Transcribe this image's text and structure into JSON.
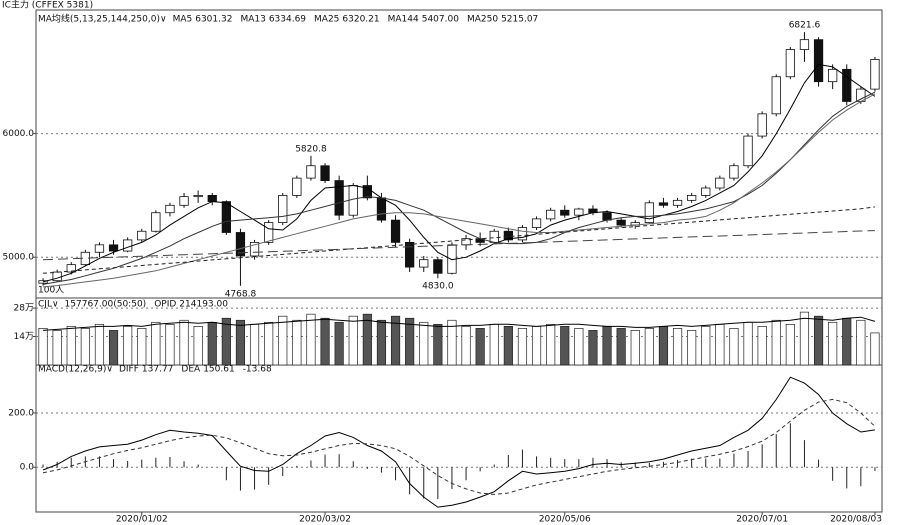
{
  "chart_data": [
    {
      "type": "candlestick",
      "title": "IC主力 (CFFEX 5381)",
      "legend_title": "MA均线(5,13,25,144,250,0)∨",
      "note": "100人",
      "ylim": [
        4670,
        7000
      ],
      "grid": true,
      "yticks": [
        {
          "value": 5000,
          "label": "5000.0"
        },
        {
          "value": 6000,
          "label": "6000.0"
        }
      ],
      "up_color": "#ffffff",
      "down_color": "#111111",
      "open": [
        4790,
        4810,
        4880,
        4940,
        5040,
        5100,
        5050,
        5140,
        5210,
        5360,
        5420,
        5490,
        5500,
        5450,
        5200,
        5010,
        5120,
        5280,
        5500,
        5640,
        5740,
        5620,
        5340,
        5580,
        5480,
        5300,
        5120,
        4920,
        4980,
        4870,
        5100,
        5150,
        5120,
        5210,
        5140,
        5240,
        5310,
        5380,
        5340,
        5390,
        5360,
        5300,
        5260,
        5280,
        5440,
        5420,
        5460,
        5500,
        5560,
        5640,
        5740,
        5980,
        6160,
        6460,
        6680,
        6760,
        6420,
        6520,
        6260,
        6360
      ],
      "high": [
        4830,
        4900,
        4960,
        5060,
        5120,
        5140,
        5160,
        5230,
        5380,
        5440,
        5520,
        5540,
        5520,
        5460,
        5230,
        5140,
        5300,
        5520,
        5660,
        5820.8,
        5760,
        5660,
        5600,
        5660,
        5520,
        5340,
        5150,
        5010,
        5000,
        5120,
        5180,
        5200,
        5230,
        5240,
        5260,
        5330,
        5400,
        5420,
        5400,
        5420,
        5380,
        5320,
        5300,
        5460,
        5480,
        5480,
        5520,
        5580,
        5660,
        5760,
        6000,
        6180,
        6480,
        6700,
        6821.6,
        6780,
        6560,
        6560,
        6380,
        6620
      ],
      "low": [
        4770,
        4800,
        4860,
        4930,
        5000,
        5020,
        5040,
        5120,
        5200,
        5330,
        5400,
        5440,
        5420,
        5180,
        4768.8,
        4980,
        5100,
        5260,
        5480,
        5620,
        5600,
        5300,
        5320,
        5460,
        5280,
        5080,
        4880,
        4880,
        4830,
        4860,
        5060,
        5090,
        5110,
        5120,
        5120,
        5220,
        5290,
        5320,
        5300,
        5340,
        5280,
        5240,
        5230,
        5270,
        5400,
        5400,
        5440,
        5480,
        5540,
        5620,
        5720,
        5960,
        6140,
        6440,
        6580,
        6380,
        6360,
        6230,
        6240,
        6340
      ],
      "close": [
        4810,
        4880,
        4940,
        5040,
        5100,
        5050,
        5140,
        5210,
        5360,
        5420,
        5490,
        5500,
        5450,
        5200,
        5010,
        5120,
        5280,
        5500,
        5640,
        5740,
        5620,
        5340,
        5580,
        5480,
        5300,
        5120,
        4920,
        4980,
        4870,
        5100,
        5150,
        5120,
        5210,
        5140,
        5240,
        5310,
        5380,
        5340,
        5390,
        5360,
        5300,
        5260,
        5280,
        5440,
        5420,
        5460,
        5500,
        5560,
        5640,
        5740,
        5980,
        6160,
        6460,
        6680,
        6760,
        6420,
        6520,
        6260,
        6360,
        6600
      ],
      "high_labels": [
        null,
        null,
        null,
        null,
        null,
        null,
        null,
        null,
        null,
        null,
        null,
        null,
        null,
        null,
        null,
        null,
        null,
        null,
        null,
        "5820.8",
        null,
        null,
        null,
        null,
        null,
        null,
        null,
        null,
        null,
        null,
        null,
        null,
        null,
        null,
        null,
        null,
        null,
        null,
        null,
        null,
        null,
        null,
        null,
        null,
        null,
        null,
        null,
        null,
        null,
        null,
        null,
        null,
        null,
        null,
        "6821.6",
        null,
        null,
        null,
        null,
        null
      ],
      "low_labels": [
        null,
        null,
        null,
        null,
        null,
        null,
        null,
        null,
        null,
        null,
        null,
        null,
        null,
        null,
        "4768.8",
        null,
        null,
        null,
        null,
        null,
        null,
        null,
        null,
        null,
        null,
        null,
        null,
        null,
        "4830.0",
        null,
        null,
        null,
        null,
        null,
        null,
        null,
        null,
        null,
        null,
        null,
        null,
        null,
        null,
        null,
        null,
        null,
        null,
        null,
        null,
        null,
        null,
        null,
        null,
        null,
        null,
        null,
        null,
        null,
        null,
        null
      ],
      "series": [
        {
          "name": "MA5",
          "legend_label": "6301.32",
          "color": "#000000",
          "style": "solid",
          "values": [
            4800,
            4830,
            4870,
            4930,
            4990,
            5040,
            5080,
            5120,
            5180,
            5260,
            5330,
            5400,
            5450,
            5440,
            5370,
            5300,
            5230,
            5220,
            5310,
            5460,
            5560,
            5570,
            5580,
            5560,
            5480,
            5420,
            5300,
            5160,
            5040,
            4980,
            5000,
            5050,
            5110,
            5150,
            5160,
            5190,
            5260,
            5300,
            5330,
            5360,
            5370,
            5350,
            5330,
            5310,
            5340,
            5370,
            5410,
            5460,
            5520,
            5580,
            5690,
            5820,
            6000,
            6200,
            6410,
            6560,
            6540,
            6460,
            6380,
            6301.32
          ]
        },
        {
          "name": "MA13",
          "legend_label": "6334.69",
          "color": "#333333",
          "style": "solid",
          "values": [
            4780,
            4800,
            4820,
            4850,
            4880,
            4910,
            4950,
            4990,
            5040,
            5090,
            5150,
            5200,
            5250,
            5290,
            5300,
            5310,
            5320,
            5330,
            5350,
            5380,
            5410,
            5440,
            5470,
            5490,
            5480,
            5460,
            5420,
            5380,
            5320,
            5260,
            5200,
            5150,
            5120,
            5110,
            5110,
            5120,
            5150,
            5200,
            5240,
            5270,
            5300,
            5320,
            5330,
            5330,
            5340,
            5350,
            5370,
            5390,
            5420,
            5450,
            5510,
            5580,
            5680,
            5790,
            5910,
            6030,
            6140,
            6220,
            6280,
            6334.69
          ]
        },
        {
          "name": "MA25",
          "legend_label": "6320.21",
          "color": "#666666",
          "style": "solid",
          "values": [
            4760,
            4770,
            4785,
            4800,
            4815,
            4830,
            4850,
            4870,
            4890,
            4920,
            4950,
            4980,
            5010,
            5040,
            5070,
            5100,
            5130,
            5160,
            5190,
            5220,
            5250,
            5280,
            5310,
            5330,
            5350,
            5360,
            5360,
            5350,
            5330,
            5310,
            5290,
            5270,
            5250,
            5230,
            5210,
            5200,
            5200,
            5210,
            5220,
            5230,
            5240,
            5250,
            5260,
            5270,
            5280,
            5300,
            5310,
            5330,
            5380,
            5440,
            5520,
            5600,
            5690,
            5790,
            5900,
            6010,
            6110,
            6190,
            6260,
            6320.21
          ]
        },
        {
          "name": "MA144",
          "legend_label": "5407.00",
          "color": "#222222",
          "style": "dashed",
          "values": [
            4870,
            4879,
            4888,
            4897,
            4906,
            4915,
            4924,
            4933,
            4942,
            4951,
            4960,
            4969,
            4978,
            4987,
            4996,
            5005,
            5014,
            5023,
            5032,
            5041,
            5050,
            5059,
            5068,
            5077,
            5086,
            5095,
            5104,
            5113,
            5122,
            5131,
            5140,
            5149,
            5158,
            5167,
            5176,
            5185,
            5194,
            5203,
            5212,
            5221,
            5230,
            5239,
            5248,
            5257,
            5266,
            5275,
            5284,
            5293,
            5302,
            5311,
            5320,
            5329,
            5338,
            5347,
            5356,
            5365,
            5374,
            5383,
            5392,
            5407
          ]
        },
        {
          "name": "MA250",
          "legend_label": "5215.07",
          "color": "#444444",
          "style": "longdash",
          "values": [
            4980,
            4984,
            4988,
            4992,
            4996,
            5000,
            5004,
            5008,
            5012,
            5016,
            5020,
            5024,
            5028,
            5032,
            5036,
            5040,
            5044,
            5048,
            5052,
            5056,
            5060,
            5064,
            5068,
            5072,
            5076,
            5080,
            5084,
            5088,
            5092,
            5096,
            5100,
            5104,
            5108,
            5112,
            5116,
            5120,
            5124,
            5128,
            5132,
            5136,
            5140,
            5144,
            5148,
            5152,
            5156,
            5160,
            5164,
            5168,
            5172,
            5176,
            5180,
            5184,
            5188,
            5192,
            5196,
            5200,
            5204,
            5208,
            5212,
            5215.07
          ]
        }
      ]
    },
    {
      "type": "volume",
      "title": "CJL∨",
      "ylim": [
        0,
        30
      ],
      "grid": true,
      "yticks": [
        {
          "value": 14,
          "label": "14万"
        },
        {
          "value": 28,
          "label": "28万"
        }
      ],
      "series": [
        {
          "type": "bar",
          "legend_label": "157767.00(50:50)",
          "color": "#555555",
          "values": [
            18,
            17,
            19,
            18,
            20,
            17,
            19,
            18,
            21,
            20,
            22,
            19,
            21,
            23,
            22,
            20,
            21,
            24,
            22,
            25,
            23,
            21,
            24,
            25,
            22,
            24,
            23,
            21,
            20,
            22,
            19,
            18,
            20,
            19,
            18,
            19,
            20,
            19,
            18,
            17,
            19,
            18,
            17,
            18,
            19,
            18,
            17,
            19,
            20,
            18,
            21,
            19,
            22,
            20,
            26,
            24,
            21,
            23,
            22,
            15.78
          ]
        },
        {
          "type": "line",
          "name": "OPID",
          "legend_label": "214193.00",
          "color": "#000000",
          "values": [
            17,
            17.5,
            18,
            18.5,
            19,
            19,
            19.5,
            19,
            20,
            20.5,
            21,
            20.5,
            21,
            20,
            19.5,
            20,
            20.5,
            21,
            21.5,
            22,
            22.5,
            22,
            21.5,
            22,
            21,
            20.5,
            20,
            19.5,
            19,
            19,
            19.5,
            19.5,
            20,
            20,
            19.5,
            19,
            19.5,
            20,
            20,
            19.5,
            19,
            19,
            18.5,
            18.5,
            19,
            19.5,
            19,
            19.5,
            20,
            20.5,
            21,
            21,
            21.5,
            22,
            23,
            22.5,
            22,
            23,
            23.5,
            21.42
          ]
        }
      ]
    },
    {
      "type": "macd",
      "title": "MACD(12,26,9)∨",
      "ylim": [
        -165,
        340
      ],
      "grid": true,
      "yticks": [
        {
          "value": 0,
          "label": "0.0"
        },
        {
          "value": 200,
          "label": "200.0"
        }
      ],
      "categories": [
        null,
        null,
        null,
        null,
        null,
        null,
        null,
        "2020/01/02",
        null,
        null,
        null,
        null,
        null,
        null,
        null,
        null,
        null,
        null,
        null,
        null,
        "2020/03/02",
        null,
        null,
        null,
        null,
        null,
        null,
        null,
        null,
        null,
        null,
        null,
        null,
        null,
        null,
        null,
        null,
        "2020/05/06",
        null,
        null,
        null,
        null,
        null,
        null,
        null,
        null,
        null,
        null,
        null,
        null,
        null,
        "2020/07/01",
        null,
        null,
        null,
        null,
        null,
        null,
        null,
        "2020/08/03"
      ],
      "series": [
        {
          "type": "line",
          "name": "DIFF",
          "legend_label": "137.77",
          "color": "#000000",
          "style": "solid",
          "values": [
            -10,
            10,
            40,
            60,
            75,
            80,
            85,
            100,
            120,
            136,
            130,
            125,
            117,
            60,
            4,
            -12,
            -15,
            10,
            50,
            80,
            115,
            128,
            110,
            80,
            60,
            20,
            -60,
            -110,
            -147,
            -140,
            -128,
            -110,
            -90,
            -50,
            -15,
            -25,
            -20,
            -15,
            -5,
            10,
            15,
            10,
            15,
            20,
            30,
            45,
            60,
            70,
            80,
            110,
            136,
            180,
            250,
            332,
            310,
            268,
            200,
            160,
            130,
            137.77
          ]
        },
        {
          "type": "line",
          "name": "DEA",
          "legend_label": "150.61",
          "color": "#333333",
          "style": "dashed",
          "values": [
            -20,
            -10,
            5,
            20,
            35,
            50,
            62,
            72,
            85,
            98,
            108,
            115,
            118,
            108,
            90,
            70,
            50,
            42,
            45,
            55,
            68,
            80,
            88,
            86,
            80,
            68,
            40,
            5,
            -30,
            -60,
            -80,
            -95,
            -100,
            -95,
            -80,
            -65,
            -55,
            -45,
            -35,
            -25,
            -15,
            -8,
            -2,
            4,
            10,
            18,
            28,
            38,
            48,
            60,
            76,
            96,
            128,
            170,
            210,
            240,
            250,
            238,
            200,
            150.61
          ]
        },
        {
          "type": "bar",
          "legend_label": "-13.68",
          "color": "#222222",
          "values": [
            10,
            20,
            35,
            40,
            40,
            30,
            23,
            28,
            35,
            38,
            22,
            10,
            -1,
            -48,
            -86,
            -82,
            -65,
            -32,
            5,
            25,
            47,
            48,
            22,
            -6,
            -20,
            -48,
            -100,
            -115,
            -117,
            -80,
            -48,
            -15,
            10,
            45,
            65,
            40,
            35,
            30,
            30,
            35,
            30,
            18,
            17,
            16,
            20,
            27,
            32,
            32,
            32,
            50,
            60,
            84,
            122,
            162,
            100,
            28,
            -50,
            -78,
            -70,
            -13.68
          ]
        }
      ]
    }
  ]
}
